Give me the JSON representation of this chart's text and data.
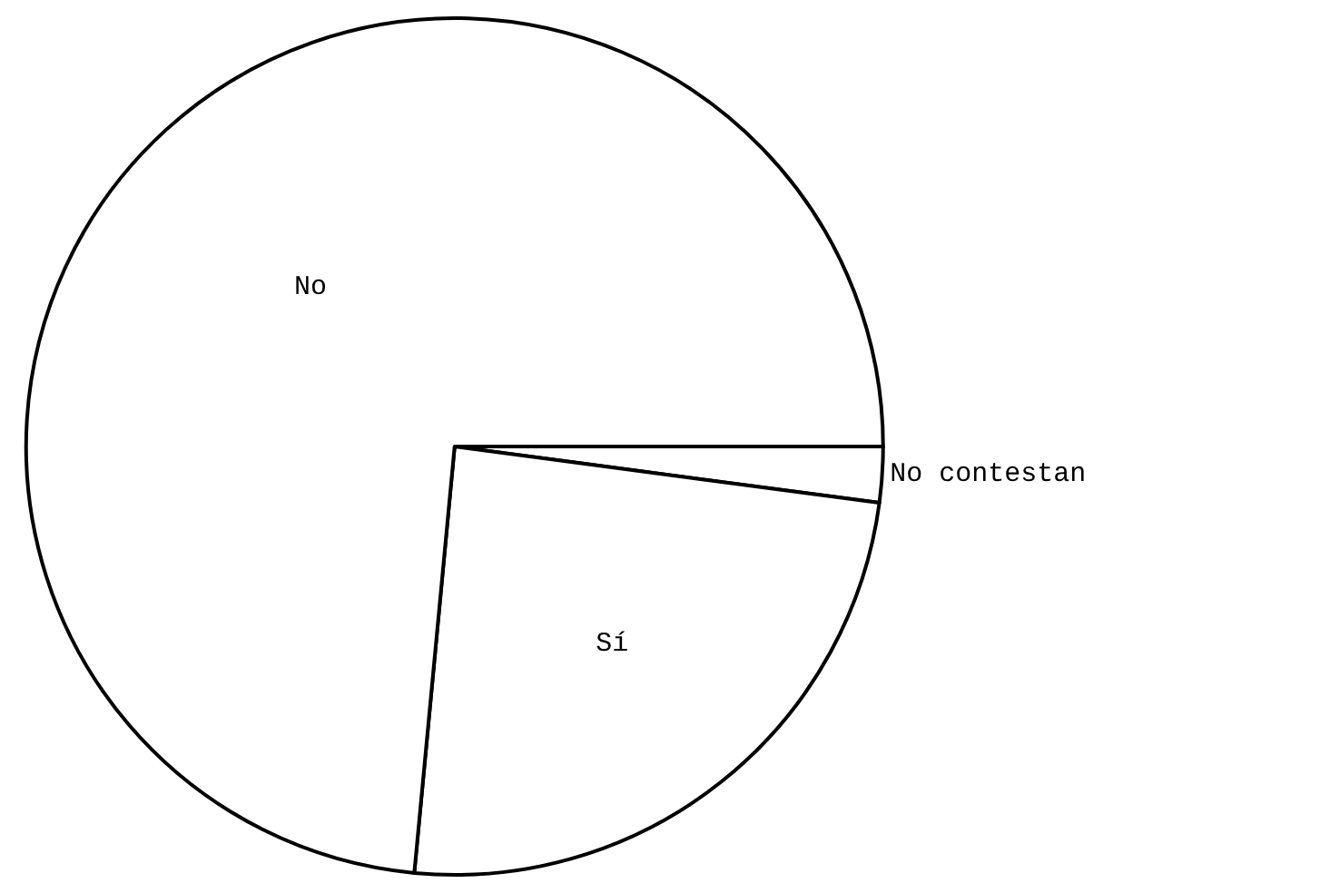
{
  "chart_data": {
    "type": "pie",
    "categories": [
      "No contestan",
      "Sí",
      "No"
    ],
    "values": [
      2.1,
      24.4,
      73.5
    ],
    "colors": [
      "#ffffff",
      "#ffffff",
      "#ffffff"
    ],
    "legend": false
  }
}
